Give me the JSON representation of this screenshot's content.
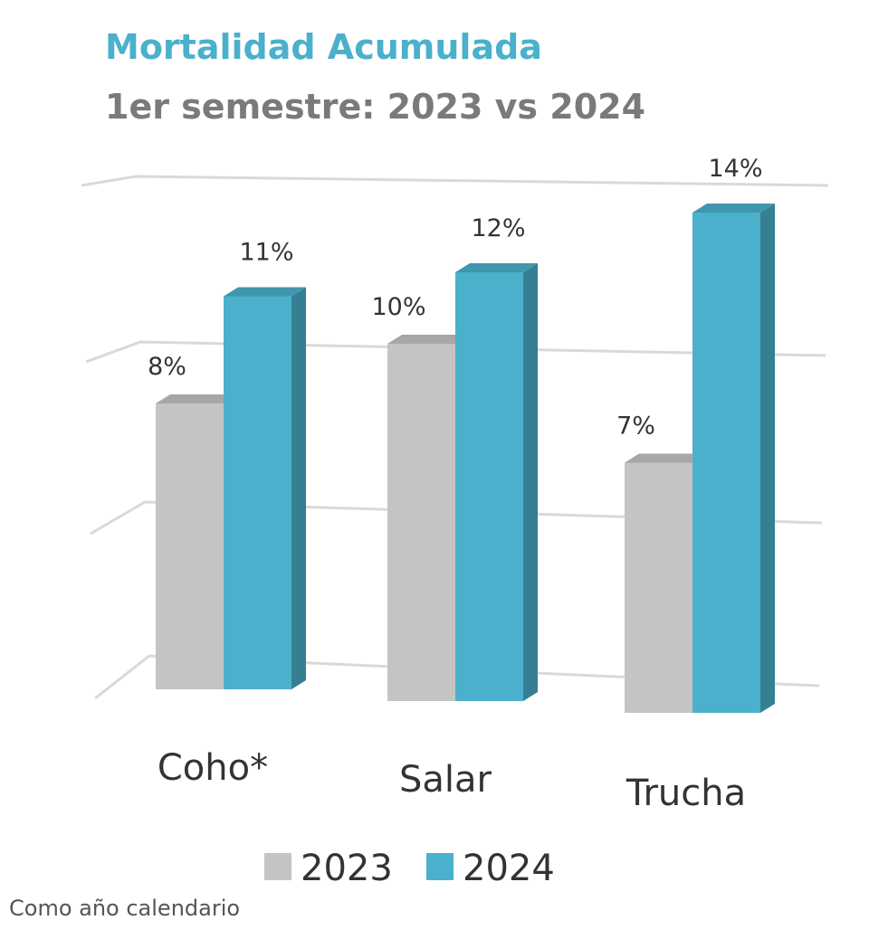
{
  "chart_data": {
    "type": "bar",
    "title": "Mortalidad Acumulada",
    "subtitle": "1er semestre: 2023 vs 2024",
    "categories": [
      "Coho*",
      "Salar",
      "Trucha"
    ],
    "series": [
      {
        "name": "2023",
        "values": [
          8,
          10,
          7
        ],
        "labels": [
          "8%",
          "10%",
          "7%"
        ],
        "color": "#C4C4C4"
      },
      {
        "name": "2024",
        "values": [
          11,
          12,
          14
        ],
        "labels": [
          "11%",
          "12%",
          "14%"
        ],
        "color": "#4BB0CB"
      }
    ],
    "ylim": [
      0,
      15
    ],
    "grid": true,
    "legend_position": "bottom",
    "footnote": "Como año calendario"
  }
}
